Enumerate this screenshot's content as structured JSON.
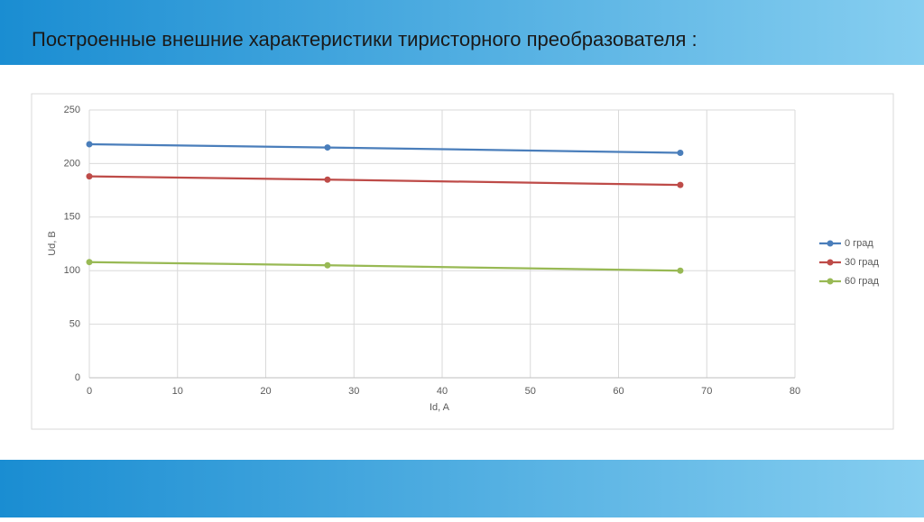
{
  "header": {
    "title": "Построенные внешние характеристики тиристорного преобразователя :"
  },
  "chart_data": {
    "type": "line",
    "x_label": "Id, A",
    "y_label": "Ud, B",
    "x": [
      0,
      27,
      67
    ],
    "series": [
      {
        "name": "0 град",
        "color": "#4a7ebb",
        "values": [
          218,
          215,
          210
        ]
      },
      {
        "name": "30 град",
        "color": "#be4b48",
        "values": [
          188,
          185,
          180
        ]
      },
      {
        "name": "60 град",
        "color": "#98b954",
        "values": [
          108,
          105,
          100
        ]
      }
    ],
    "xlim": [
      0,
      80
    ],
    "xticks": [
      0,
      10,
      20,
      30,
      40,
      50,
      60,
      70,
      80
    ],
    "ylim": [
      0,
      250
    ],
    "yticks": [
      0,
      50,
      100,
      150,
      200,
      250
    ],
    "grid": true,
    "legend": "right"
  }
}
